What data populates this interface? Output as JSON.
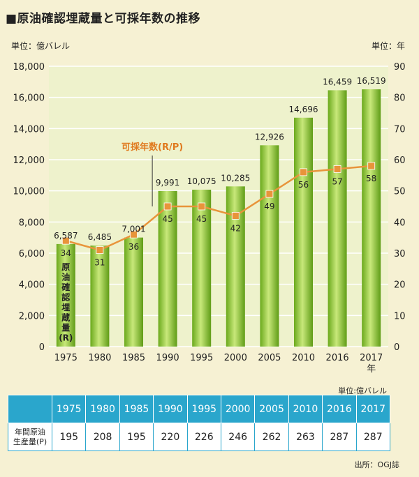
{
  "title": "■原油確認埋蔵量と可採年数の推移",
  "unit_left": "単位：億バレル",
  "unit_right": "単位：年",
  "chart_data": {
    "type": "bar+line",
    "categories": [
      "1975",
      "1980",
      "1985",
      "1990",
      "1995",
      "2000",
      "2005",
      "2010",
      "2016",
      "2017"
    ],
    "bar_series": {
      "name": "原油確認埋蔵量(R)",
      "values": [
        6587,
        6485,
        7001,
        9991,
        10075,
        10285,
        12926,
        14696,
        16459,
        16519
      ],
      "labels": [
        "6,587",
        "6,485",
        "7,001",
        "9,991",
        "10,075",
        "10,285",
        "12,926",
        "14,696",
        "16,459",
        "16,519"
      ],
      "color": "#7fbf2a"
    },
    "line_series": {
      "name": "可採年数(R/P)",
      "values": [
        34,
        31,
        36,
        45,
        45,
        42,
        49,
        56,
        57,
        58
      ],
      "color": "#e8943a"
    },
    "y_left": {
      "min": 0,
      "max": 18000,
      "ticks": [
        "0",
        "2,000",
        "4,000",
        "6,000",
        "8,000",
        "10,000",
        "12,000",
        "14,000",
        "16,000",
        "18,000"
      ]
    },
    "y_right": {
      "min": 0,
      "max": 90,
      "ticks": [
        "0",
        "10",
        "20",
        "30",
        "40",
        "50",
        "60",
        "70",
        "80",
        "90"
      ]
    },
    "x_suffix": "年",
    "bar_label_vertical": [
      "原",
      "油",
      "確",
      "認",
      "埋",
      "蔵",
      "量",
      "(R)"
    ],
    "line_annotation": "可採年数(R/P)"
  },
  "table": {
    "unit": "単位:億バレル",
    "years": [
      "1975",
      "1980",
      "1985",
      "1990",
      "1995",
      "2000",
      "2005",
      "2010",
      "2016",
      "2017"
    ],
    "row_label_1": "年間原油",
    "row_label_2": "生産量(P)",
    "values": [
      "195",
      "208",
      "195",
      "220",
      "226",
      "246",
      "262",
      "263",
      "287",
      "287"
    ]
  },
  "source": "出所：OGJ誌"
}
